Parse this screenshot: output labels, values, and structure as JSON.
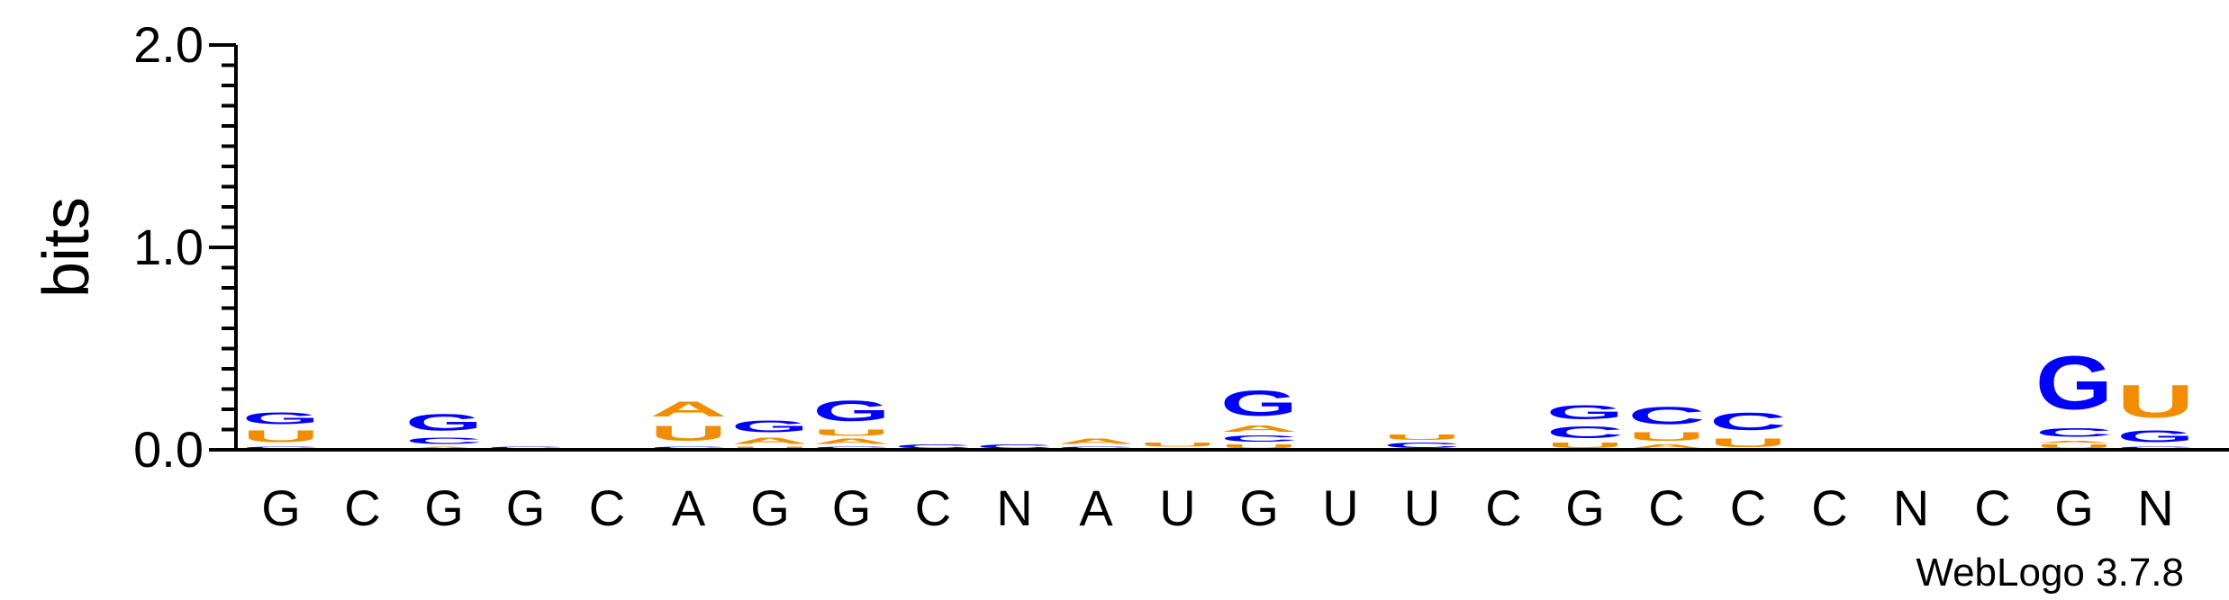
{
  "chart_data": {
    "type": "sequence-logo",
    "ylabel": "bits",
    "ylim": [
      0,
      2
    ],
    "yticks": [
      "0.0",
      "1.0",
      "2.0"
    ],
    "credit": "WebLogo 3.7.8",
    "colors": {
      "A": "#f28c00",
      "U": "#f28c00",
      "G": "#0000ff",
      "C": "#0000ff"
    },
    "positions": [
      {
        "consensus": "G",
        "stack": [
          {
            "letter": "C",
            "bits": 0.02
          },
          {
            "letter": "U",
            "bits": 0.09
          },
          {
            "letter": "G",
            "bits": 0.09
          }
        ]
      },
      {
        "consensus": "C",
        "stack": []
      },
      {
        "consensus": "G",
        "stack": [
          {
            "letter": "A",
            "bits": 0.02
          },
          {
            "letter": "C",
            "bits": 0.05
          },
          {
            "letter": "G",
            "bits": 0.13
          }
        ]
      },
      {
        "consensus": "G",
        "stack": [
          {
            "letter": "C",
            "bits": 0.02
          }
        ]
      },
      {
        "consensus": "C",
        "stack": [
          {
            "letter": "C",
            "bits": 0.01
          }
        ]
      },
      {
        "consensus": "A",
        "stack": [
          {
            "letter": "C",
            "bits": 0.02
          },
          {
            "letter": "U",
            "bits": 0.12
          },
          {
            "letter": "A",
            "bits": 0.12
          }
        ]
      },
      {
        "consensus": "G",
        "stack": [
          {
            "letter": "U",
            "bits": 0.02
          },
          {
            "letter": "A",
            "bits": 0.05
          },
          {
            "letter": "G",
            "bits": 0.09
          }
        ]
      },
      {
        "consensus": "G",
        "stack": [
          {
            "letter": "C",
            "bits": 0.02
          },
          {
            "letter": "A",
            "bits": 0.04
          },
          {
            "letter": "U",
            "bits": 0.05
          },
          {
            "letter": "G",
            "bits": 0.16
          }
        ]
      },
      {
        "consensus": "C",
        "stack": [
          {
            "letter": "C",
            "bits": 0.03
          }
        ]
      },
      {
        "consensus": "N",
        "stack": [
          {
            "letter": "C",
            "bits": 0.03
          }
        ]
      },
      {
        "consensus": "A",
        "stack": [
          {
            "letter": "C",
            "bits": 0.02
          },
          {
            "letter": "A",
            "bits": 0.04
          }
        ]
      },
      {
        "consensus": "U",
        "stack": [
          {
            "letter": "A",
            "bits": 0.01
          },
          {
            "letter": "U",
            "bits": 0.03
          }
        ]
      },
      {
        "consensus": "G",
        "stack": [
          {
            "letter": "U",
            "bits": 0.03
          },
          {
            "letter": "C",
            "bits": 0.05
          },
          {
            "letter": "A",
            "bits": 0.05
          },
          {
            "letter": "G",
            "bits": 0.2
          }
        ]
      },
      {
        "consensus": "U",
        "stack": []
      },
      {
        "consensus": "U",
        "stack": [
          {
            "letter": "C",
            "bits": 0.04
          },
          {
            "letter": "U",
            "bits": 0.04
          }
        ]
      },
      {
        "consensus": "C",
        "stack": []
      },
      {
        "consensus": "G",
        "stack": [
          {
            "letter": "U",
            "bits": 0.04
          },
          {
            "letter": "C",
            "bits": 0.09
          },
          {
            "letter": "G",
            "bits": 0.11
          }
        ]
      },
      {
        "consensus": "C",
        "stack": [
          {
            "letter": "A",
            "bits": 0.03
          },
          {
            "letter": "U",
            "bits": 0.07
          },
          {
            "letter": "C",
            "bits": 0.14
          }
        ]
      },
      {
        "consensus": "C",
        "stack": [
          {
            "letter": "U",
            "bits": 0.07
          },
          {
            "letter": "C",
            "bits": 0.14
          }
        ]
      },
      {
        "consensus": "C",
        "stack": [
          {
            "letter": "U",
            "bits": 0.01
          }
        ]
      },
      {
        "consensus": "N",
        "stack": []
      },
      {
        "consensus": "C",
        "stack": [
          {
            "letter": "U",
            "bits": 0.01
          }
        ]
      },
      {
        "consensus": "G",
        "stack": [
          {
            "letter": "U",
            "bits": 0.03
          },
          {
            "letter": "A",
            "bits": 0.02
          },
          {
            "letter": "C",
            "bits": 0.07
          },
          {
            "letter": "G",
            "bits": 0.42
          }
        ]
      },
      {
        "consensus": "N",
        "stack": [
          {
            "letter": "C",
            "bits": 0.02
          },
          {
            "letter": "G",
            "bits": 0.09
          },
          {
            "letter": "U",
            "bits": 0.26
          }
        ]
      }
    ]
  }
}
